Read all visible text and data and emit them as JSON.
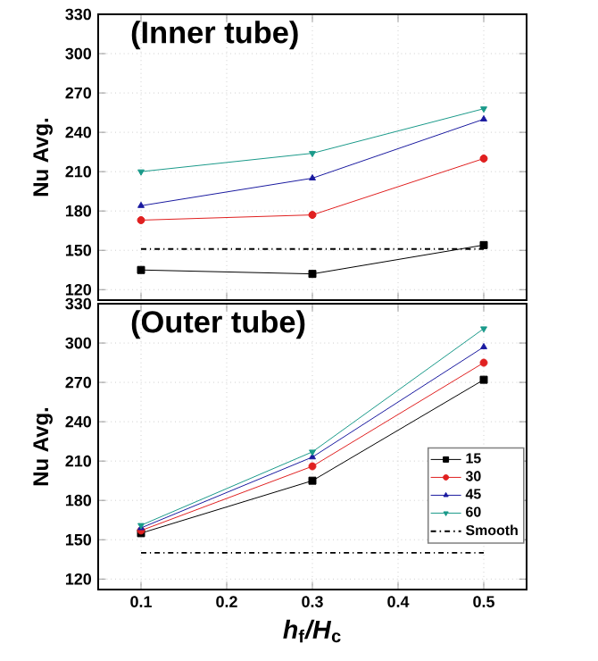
{
  "chart_data": [
    {
      "type": "line",
      "title": "(Inner tube)",
      "ylabel": "Nu Avg.",
      "x": [
        0.1,
        0.3,
        0.5
      ],
      "xlim": [
        0.05,
        0.55
      ],
      "xticks": [
        0.1,
        0.2,
        0.3,
        0.4,
        0.5
      ],
      "ylim": [
        112,
        330
      ],
      "yticks": [
        120,
        150,
        180,
        210,
        240,
        270,
        300,
        330
      ],
      "grid": true,
      "legend": false,
      "tick_labels": "y",
      "series": [
        {
          "color": "#000000",
          "marker": "square",
          "values": [
            135,
            132,
            154
          ]
        },
        {
          "color": "#e02020",
          "marker": "circle",
          "values": [
            173,
            177,
            220
          ]
        },
        {
          "color": "#1a1aa0",
          "marker": "triangle",
          "values": [
            184,
            205,
            250
          ]
        },
        {
          "color": "#1a9a8a",
          "marker": "triangle-down",
          "values": [
            210,
            224,
            258
          ]
        },
        {
          "color": "#000000",
          "marker": "none",
          "line_style": "dashdot",
          "values": [
            151,
            151,
            151
          ]
        }
      ]
    },
    {
      "type": "line",
      "title": "(Outer tube)",
      "ylabel": "Nu Avg.",
      "xlabel": "*h*$_{f}$*/H*$_{c}$",
      "x": [
        0.1,
        0.3,
        0.5
      ],
      "xlim": [
        0.05,
        0.55
      ],
      "xticks": [
        0.1,
        0.2,
        0.3,
        0.4,
        0.5
      ],
      "ylim": [
        112,
        330
      ],
      "yticks": [
        120,
        150,
        180,
        210,
        240,
        270,
        300,
        330
      ],
      "grid": true,
      "legend": "right",
      "series": [
        {
          "name": "15",
          "color": "#000000",
          "marker": "square",
          "values": [
            155,
            195,
            272
          ]
        },
        {
          "name": "30",
          "color": "#e02020",
          "marker": "circle",
          "values": [
            157,
            206,
            285
          ]
        },
        {
          "name": "45",
          "color": "#1a1aa0",
          "marker": "triangle",
          "values": [
            159,
            213,
            297
          ]
        },
        {
          "name": "60",
          "color": "#1a9a8a",
          "marker": "triangle-down",
          "values": [
            161,
            217,
            311
          ]
        },
        {
          "name": "Smooth",
          "color": "#000000",
          "marker": "none",
          "line_style": "dashdot",
          "values": [
            140,
            140,
            140
          ]
        }
      ]
    }
  ]
}
